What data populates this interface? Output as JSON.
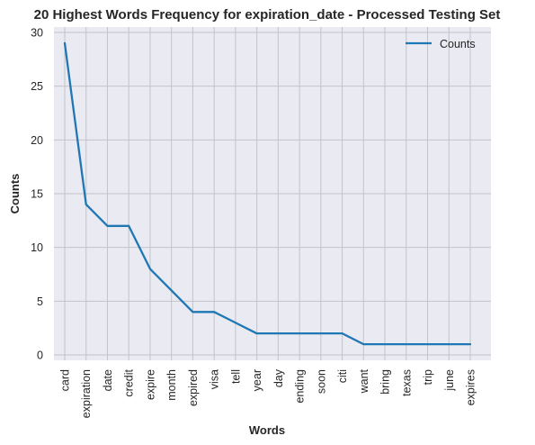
{
  "chart_data": {
    "type": "line",
    "title": "20 Highest Words Frequency for expiration_date - Processed Testing Set",
    "xlabel": "Words",
    "ylabel": "Counts",
    "categories": [
      "card",
      "expiration",
      "date",
      "credit",
      "expire",
      "month",
      "expired",
      "visa",
      "tell",
      "year",
      "day",
      "ending",
      "soon",
      "citi",
      "want",
      "bring",
      "texas",
      "trip",
      "june",
      "expires"
    ],
    "series": [
      {
        "name": "Counts",
        "values": [
          29,
          14,
          12,
          12,
          8,
          6,
          4,
          4,
          3,
          2,
          2,
          2,
          2,
          2,
          1,
          1,
          1,
          1,
          1,
          1
        ]
      }
    ],
    "yticks": [
      0,
      5,
      10,
      15,
      20,
      25,
      30
    ],
    "ylim": [
      -0.5,
      30.5
    ],
    "grid": true,
    "legend_position": "top-right",
    "colors": {
      "line": "#1f77b4",
      "plot_background": "#eaeaf2",
      "grid": "#c3c3c8",
      "text": "#262626"
    }
  }
}
